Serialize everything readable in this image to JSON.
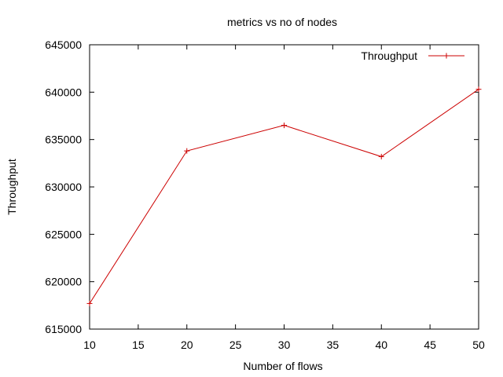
{
  "chart_data": {
    "type": "line",
    "title": "metrics vs no of nodes",
    "xlabel": "Number of flows",
    "ylabel": "Throughput",
    "xlim": [
      10,
      50
    ],
    "ylim": [
      615000,
      645000
    ],
    "xticks": [
      10,
      15,
      20,
      25,
      30,
      35,
      40,
      45,
      50
    ],
    "yticks": [
      615000,
      620000,
      625000,
      630000,
      635000,
      640000,
      645000
    ],
    "grid": false,
    "legend_position": "top-right",
    "series": [
      {
        "name": "Throughput",
        "color": "#cc0000",
        "marker": "plus",
        "x": [
          10,
          20,
          30,
          40,
          50
        ],
        "y": [
          617700,
          633800,
          636500,
          633200,
          640300
        ]
      }
    ]
  }
}
